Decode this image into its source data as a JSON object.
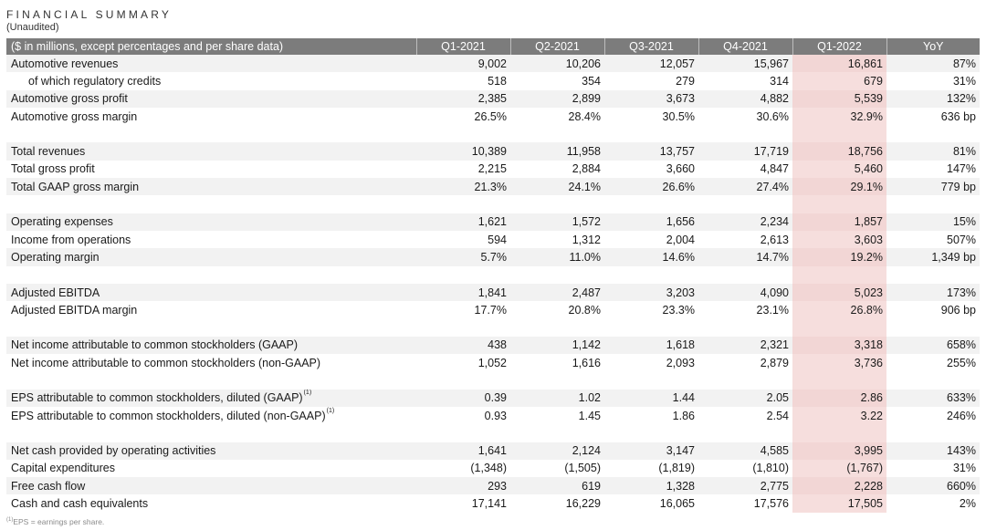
{
  "title": "FINANCIAL SUMMARY",
  "subtitle": "(Unaudited)",
  "header": {
    "label": "($ in millions, except percentages and per share data)",
    "columns": [
      "Q1-2021",
      "Q2-2021",
      "Q3-2021",
      "Q4-2021",
      "Q1-2022",
      "YoY"
    ]
  },
  "groups": [
    {
      "rows": [
        {
          "label": "Automotive revenues",
          "values": [
            "9,002",
            "10,206",
            "12,057",
            "15,967",
            "16,861",
            "87%"
          ]
        },
        {
          "label": "of which regulatory credits",
          "values": [
            "518",
            "354",
            "279",
            "314",
            "679",
            "31%"
          ]
        },
        {
          "label": "Automotive gross profit",
          "values": [
            "2,385",
            "2,899",
            "3,673",
            "4,882",
            "5,539",
            "132%"
          ]
        },
        {
          "label": "Automotive gross margin",
          "values": [
            "26.5%",
            "28.4%",
            "30.5%",
            "30.6%",
            "32.9%",
            "636 bp"
          ]
        }
      ]
    },
    {
      "rows": [
        {
          "label": "Total revenues",
          "values": [
            "10,389",
            "11,958",
            "13,757",
            "17,719",
            "18,756",
            "81%"
          ]
        },
        {
          "label": "Total gross profit",
          "values": [
            "2,215",
            "2,884",
            "3,660",
            "4,847",
            "5,460",
            "147%"
          ]
        },
        {
          "label": "Total GAAP gross margin",
          "values": [
            "21.3%",
            "24.1%",
            "26.6%",
            "27.4%",
            "29.1%",
            "779 bp"
          ]
        }
      ]
    },
    {
      "rows": [
        {
          "label": "Operating expenses",
          "values": [
            "1,621",
            "1,572",
            "1,656",
            "2,234",
            "1,857",
            "15%"
          ]
        },
        {
          "label": "Income from operations",
          "values": [
            "594",
            "1,312",
            "2,004",
            "2,613",
            "3,603",
            "507%"
          ]
        },
        {
          "label": "Operating margin",
          "values": [
            "5.7%",
            "11.0%",
            "14.6%",
            "14.7%",
            "19.2%",
            "1,349 bp"
          ]
        }
      ]
    },
    {
      "rows": [
        {
          "label": "Adjusted EBITDA",
          "values": [
            "1,841",
            "2,487",
            "3,203",
            "4,090",
            "5,023",
            "173%"
          ]
        },
        {
          "label": "Adjusted EBITDA margin",
          "values": [
            "17.7%",
            "20.8%",
            "23.3%",
            "23.1%",
            "26.8%",
            "906 bp"
          ]
        }
      ]
    },
    {
      "rows": [
        {
          "label": "Net income attributable to common stockholders (GAAP)",
          "values": [
            "438",
            "1,142",
            "1,618",
            "2,321",
            "3,318",
            "658%"
          ]
        },
        {
          "label": "Net income attributable to common stockholders (non-GAAP)",
          "values": [
            "1,052",
            "1,616",
            "2,093",
            "2,879",
            "3,736",
            "255%"
          ]
        }
      ]
    },
    {
      "rows": [
        {
          "label": "EPS attributable to common stockholders, diluted (GAAP)",
          "footnote": "(1)",
          "values": [
            "0.39",
            "1.02",
            "1.44",
            "2.05",
            "2.86",
            "633%"
          ]
        },
        {
          "label": "EPS attributable to common stockholders, diluted (non-GAAP)",
          "footnote": "(1)",
          "values": [
            "0.93",
            "1.45",
            "1.86",
            "2.54",
            "3.22",
            "246%"
          ]
        }
      ]
    },
    {
      "rows": [
        {
          "label": "Net cash provided by operating activities",
          "values": [
            "1,641",
            "2,124",
            "3,147",
            "4,585",
            "3,995",
            "143%"
          ]
        },
        {
          "label": "Capital expenditures",
          "values": [
            "(1,348)",
            "(1,505)",
            "(1,819)",
            "(1,810)",
            "(1,767)",
            "31%"
          ]
        },
        {
          "label": "Free cash flow",
          "values": [
            "293",
            "619",
            "1,328",
            "2,775",
            "2,228",
            "660%"
          ]
        },
        {
          "label": "Cash and cash equivalents",
          "values": [
            "17,141",
            "16,229",
            "16,065",
            "17,576",
            "17,505",
            "2%"
          ]
        }
      ]
    }
  ],
  "footnote": {
    "marker": "(1)",
    "text": "EPS = earnings per share."
  },
  "colors": {
    "header_bg": "#7c7c7c",
    "highlight": "#f6dedd",
    "row_shade": "#f2f2f2"
  }
}
